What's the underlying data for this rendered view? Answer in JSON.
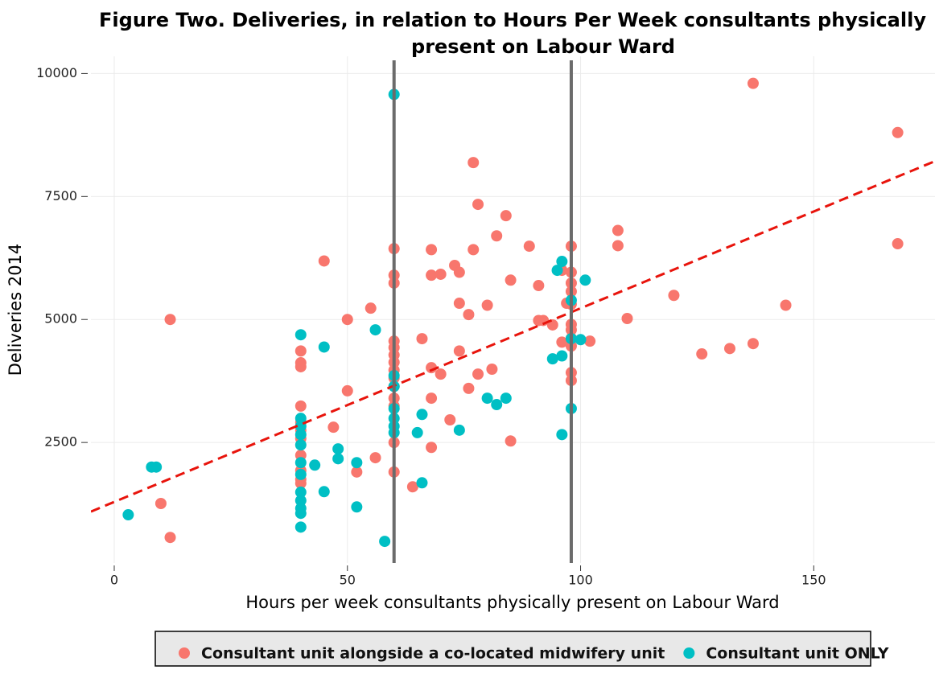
{
  "chart_data": {
    "type": "scatter",
    "title": [
      "Figure Two. Deliveries, in relation to Hours Per Week consultants physically",
      "present on Labour Ward"
    ],
    "x_label": "Hours per week consultants physically present on Labour Ward",
    "y_label": "Deliveries 2014",
    "xlim": [
      -5,
      176
    ],
    "ylim": [
      50,
      10350
    ],
    "xticks": [
      0,
      50,
      100,
      150
    ],
    "yticks": [
      2500,
      5000,
      7500,
      10000
    ],
    "grid": true,
    "legend": "bottom",
    "vlines": [
      60,
      98
    ],
    "trend_line": {
      "color": "#e8140c",
      "x": [
        -5,
        176
      ],
      "y": [
        1095,
        8219
      ]
    },
    "series": [
      {
        "name": "Consultant unit alongside a co-located midwifery unit",
        "color": "#f8766d",
        "x": [
          137,
          168,
          168,
          77,
          78,
          84,
          82,
          89,
          98,
          108,
          108,
          68,
          77,
          60,
          45,
          73,
          74,
          70,
          68,
          60,
          60,
          85,
          91,
          96,
          98,
          98,
          98,
          98,
          120,
          80,
          97,
          74,
          55,
          76,
          144,
          110,
          91,
          92,
          94,
          12,
          50,
          98,
          98,
          98,
          98,
          96,
          102,
          137,
          132,
          126,
          60,
          60,
          60,
          60,
          60,
          60,
          66,
          74,
          40,
          40,
          40,
          68,
          81,
          70,
          78,
          98,
          98,
          50,
          76,
          60,
          60,
          60,
          68,
          40,
          40,
          40,
          40,
          47,
          72,
          60,
          85,
          68,
          40,
          40,
          40,
          40,
          56,
          52,
          60,
          64,
          10,
          12
        ],
        "y": [
          9800,
          8800,
          6540,
          8190,
          7340,
          7110,
          6700,
          6490,
          6490,
          6810,
          6500,
          6420,
          6420,
          6440,
          6190,
          6100,
          5960,
          5920,
          5900,
          5900,
          5740,
          5800,
          5690,
          6000,
          5960,
          5740,
          5570,
          5310,
          5490,
          5290,
          5330,
          5330,
          5230,
          5100,
          5290,
          5020,
          4980,
          4980,
          4890,
          5000,
          5000,
          4900,
          4790,
          4620,
          4460,
          4540,
          4560,
          4510,
          4410,
          4300,
          4560,
          4430,
          4280,
          4130,
          3970,
          3810,
          4610,
          4360,
          4360,
          4120,
          4040,
          4020,
          3990,
          3890,
          3890,
          3920,
          3760,
          3550,
          3600,
          3640,
          3400,
          3240,
          3400,
          3240,
          2910,
          2750,
          2580,
          2810,
          2960,
          2500,
          2530,
          2400,
          2240,
          1930,
          1750,
          1670,
          2190,
          1900,
          1900,
          1600,
          1260,
          570
        ]
      },
      {
        "name": "Consultant unit ONLY",
        "color": "#00bfc4",
        "x": [
          60,
          96,
          95,
          101,
          98,
          56,
          40,
          45,
          98,
          100,
          96,
          94,
          60,
          60,
          80,
          84,
          82,
          60,
          60,
          60,
          60,
          98,
          66,
          40,
          40,
          40,
          40,
          74,
          65,
          96,
          48,
          48,
          43,
          52,
          40,
          40,
          8,
          9,
          66,
          45,
          40,
          40,
          40,
          40,
          40,
          52,
          3,
          58
        ],
        "y": [
          9575,
          6180,
          6000,
          5800,
          5390,
          4790,
          4690,
          4440,
          4610,
          4590,
          4260,
          4200,
          3860,
          3640,
          3400,
          3400,
          3270,
          3190,
          2990,
          2830,
          2700,
          3190,
          3070,
          2990,
          2830,
          2660,
          2450,
          2750,
          2700,
          2660,
          2370,
          2170,
          2040,
          2090,
          2090,
          1850,
          2000,
          2000,
          1680,
          1500,
          1490,
          1320,
          1160,
          1060,
          780,
          1190,
          1030,
          490
        ]
      }
    ]
  }
}
